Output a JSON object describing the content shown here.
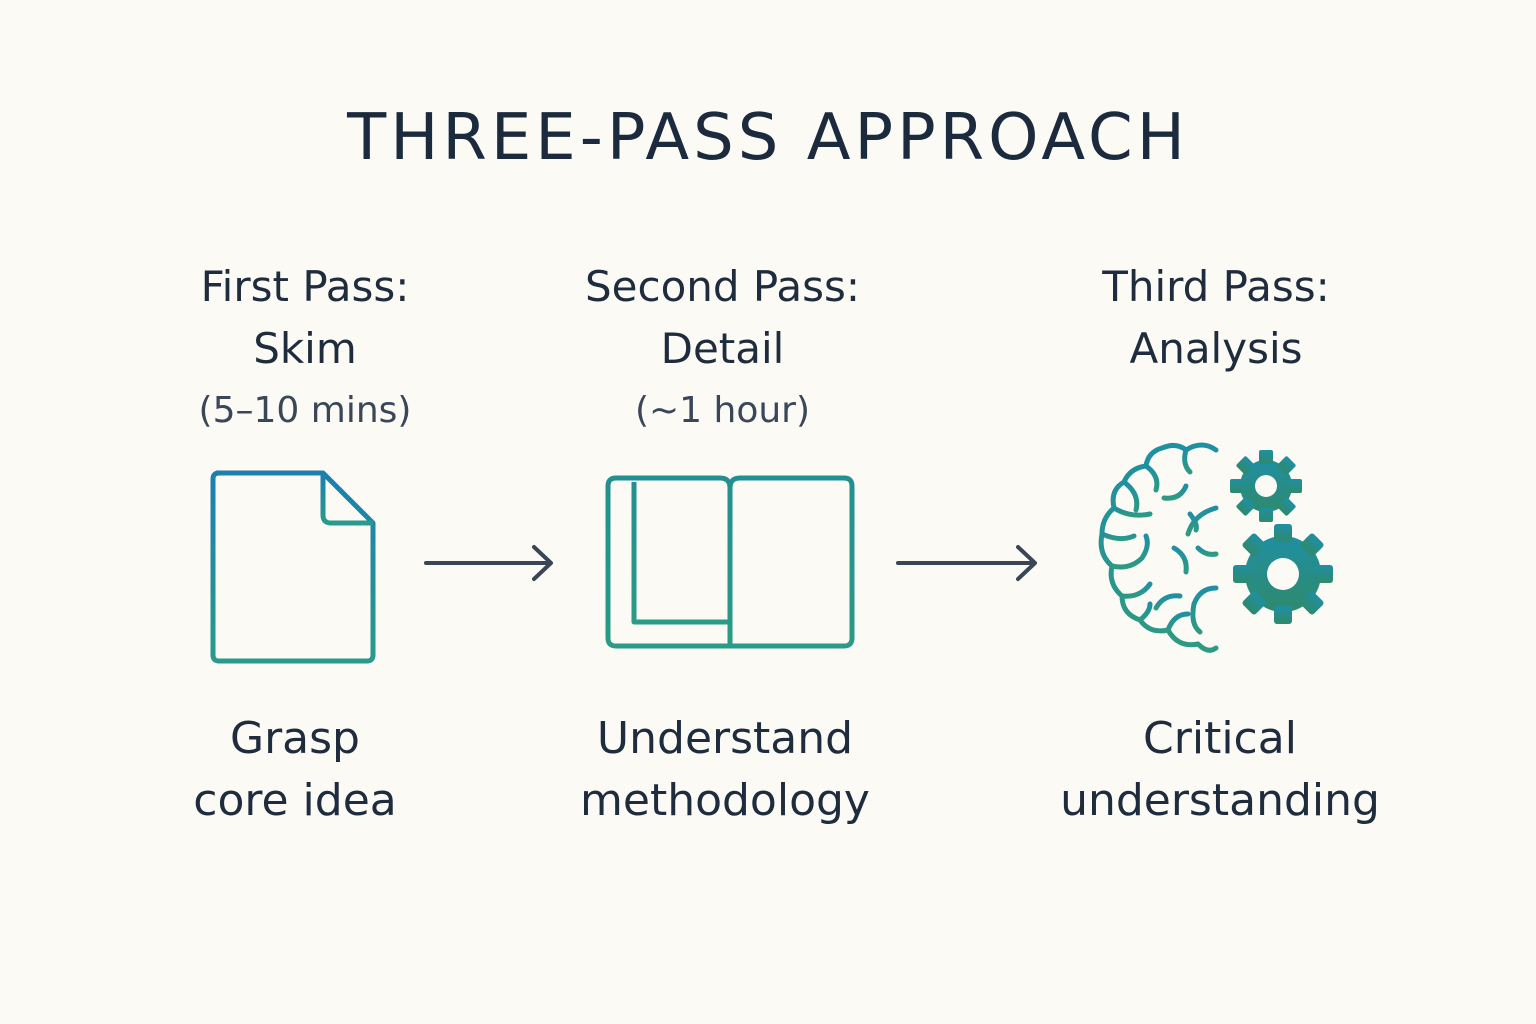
{
  "title": "THREE-PASS APPROACH",
  "colors": {
    "background": "#fbfaf5",
    "text": "#1f2c3d",
    "icon_blue": "#1c7fb0",
    "icon_teal": "#2a9a8c",
    "icon_green": "#2f8c6c",
    "arrow": "#3a4655"
  },
  "passes": [
    {
      "heading": "First Pass:",
      "name": "Skim",
      "time": "(5–10 mins)",
      "icon": "document-icon",
      "goal_line1": "Grasp",
      "goal_line2": "core idea"
    },
    {
      "heading": "Second Pass:",
      "name": "Detail",
      "time": "(~1 hour)",
      "icon": "open-book-icon",
      "goal_line1": "Understand",
      "goal_line2": "methodology"
    },
    {
      "heading": "Third Pass:",
      "name": "Analysis",
      "icon": "brain-gears-icon",
      "goal_line1": "Critical",
      "goal_line2": "understanding"
    }
  ]
}
